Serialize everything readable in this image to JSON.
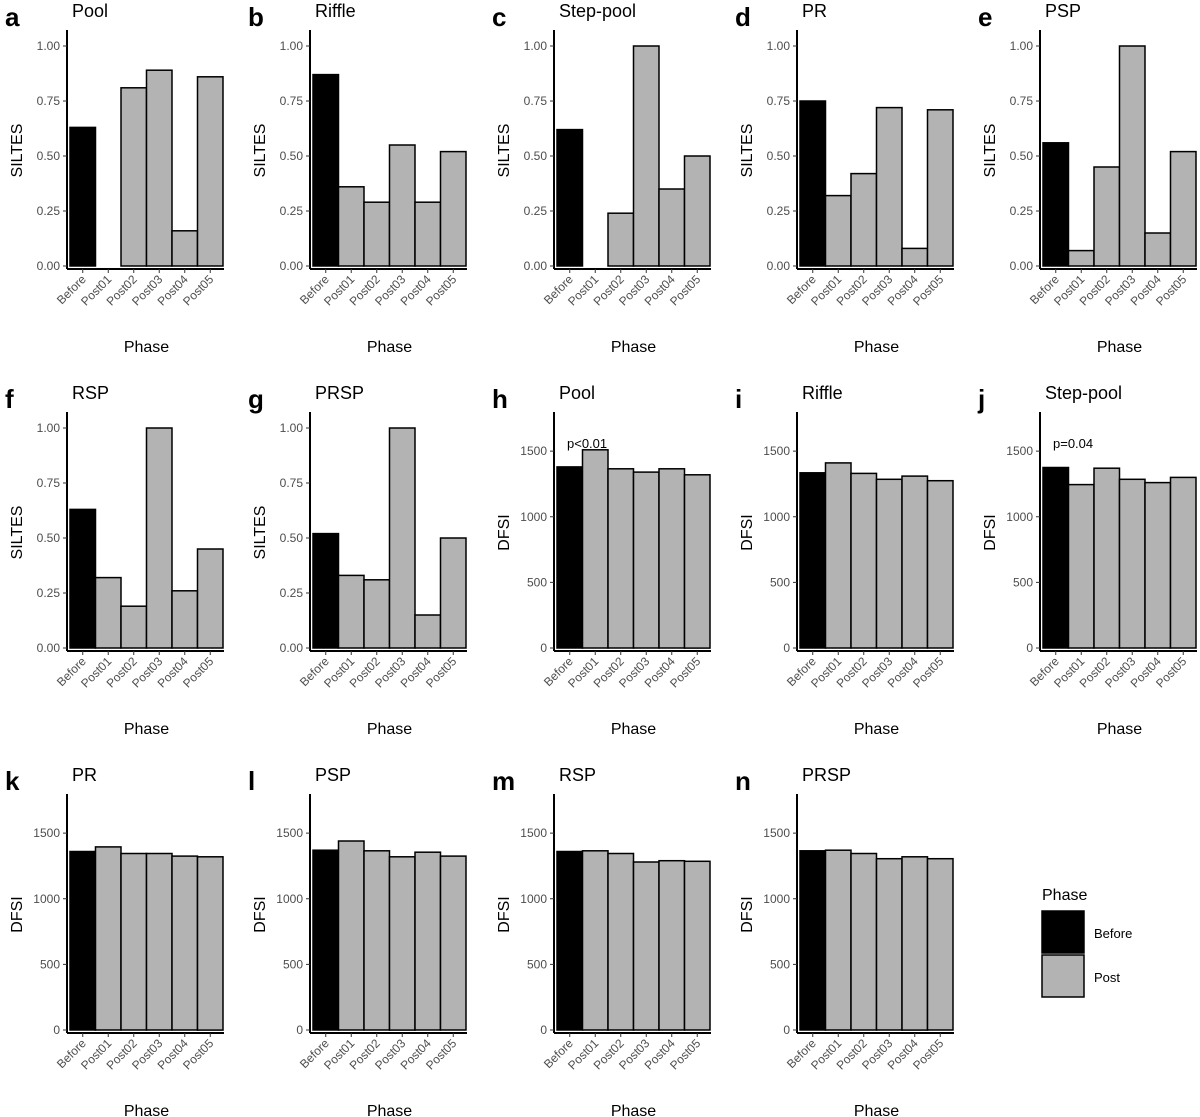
{
  "figure": {
    "legend": {
      "title": "Phase",
      "placement": "right",
      "entries": [
        {
          "label": "Before",
          "color": "#000000"
        },
        {
          "label": "Post",
          "color": "#b3b3b3"
        }
      ]
    }
  },
  "chart_data": [
    {
      "letter": "a",
      "type": "bar",
      "title": "Pool",
      "xlabel": "Phase",
      "ylabel": "SILTES",
      "ylim": [
        0,
        1.05
      ],
      "yticks": [
        0,
        0.25,
        0.5,
        0.75,
        1
      ],
      "ytick_labels": [
        "0.00",
        "0.25",
        "0.50",
        "0.75",
        "1.00"
      ],
      "categories": [
        "Before",
        "Post01",
        "Post02",
        "Post03",
        "Post04",
        "Post05"
      ],
      "groups": [
        "Before",
        "Post",
        "Post",
        "Post",
        "Post",
        "Post"
      ],
      "values": [
        0.63,
        0.0,
        0.81,
        0.89,
        0.16,
        0.86
      ],
      "annotation": ""
    },
    {
      "letter": "b",
      "type": "bar",
      "title": "Riffle",
      "xlabel": "Phase",
      "ylabel": "SILTES",
      "ylim": [
        0,
        1.05
      ],
      "yticks": [
        0,
        0.25,
        0.5,
        0.75,
        1
      ],
      "ytick_labels": [
        "0.00",
        "0.25",
        "0.50",
        "0.75",
        "1.00"
      ],
      "categories": [
        "Before",
        "Post01",
        "Post02",
        "Post03",
        "Post04",
        "Post05"
      ],
      "groups": [
        "Before",
        "Post",
        "Post",
        "Post",
        "Post",
        "Post"
      ],
      "values": [
        0.87,
        0.36,
        0.29,
        0.55,
        0.29,
        0.52
      ],
      "annotation": ""
    },
    {
      "letter": "c",
      "type": "bar",
      "title": "Step-pool",
      "xlabel": "Phase",
      "ylabel": "SILTES",
      "ylim": [
        0,
        1.05
      ],
      "yticks": [
        0,
        0.25,
        0.5,
        0.75,
        1
      ],
      "ytick_labels": [
        "0.00",
        "0.25",
        "0.50",
        "0.75",
        "1.00"
      ],
      "categories": [
        "Before",
        "Post01",
        "Post02",
        "Post03",
        "Post04",
        "Post05"
      ],
      "groups": [
        "Before",
        "Post",
        "Post",
        "Post",
        "Post",
        "Post"
      ],
      "values": [
        0.62,
        0.0,
        0.24,
        1.0,
        0.35,
        0.5
      ],
      "annotation": ""
    },
    {
      "letter": "d",
      "type": "bar",
      "title": "PR",
      "xlabel": "Phase",
      "ylabel": "SILTES",
      "ylim": [
        0,
        1.05
      ],
      "yticks": [
        0,
        0.25,
        0.5,
        0.75,
        1
      ],
      "ytick_labels": [
        "0.00",
        "0.25",
        "0.50",
        "0.75",
        "1.00"
      ],
      "categories": [
        "Before",
        "Post01",
        "Post02",
        "Post03",
        "Post04",
        "Post05"
      ],
      "groups": [
        "Before",
        "Post",
        "Post",
        "Post",
        "Post",
        "Post"
      ],
      "values": [
        0.75,
        0.32,
        0.42,
        0.72,
        0.08,
        0.71
      ],
      "annotation": ""
    },
    {
      "letter": "e",
      "type": "bar",
      "title": "PSP",
      "xlabel": "Phase",
      "ylabel": "SILTES",
      "ylim": [
        0,
        1.05
      ],
      "yticks": [
        0,
        0.25,
        0.5,
        0.75,
        1
      ],
      "ytick_labels": [
        "0.00",
        "0.25",
        "0.50",
        "0.75",
        "1.00"
      ],
      "categories": [
        "Before",
        "Post01",
        "Post02",
        "Post03",
        "Post04",
        "Post05"
      ],
      "groups": [
        "Before",
        "Post",
        "Post",
        "Post",
        "Post",
        "Post"
      ],
      "values": [
        0.56,
        0.07,
        0.45,
        1.0,
        0.15,
        0.52
      ],
      "annotation": ""
    },
    {
      "letter": "f",
      "type": "bar",
      "title": "RSP",
      "xlabel": "Phase",
      "ylabel": "SILTES",
      "ylim": [
        0,
        1.05
      ],
      "yticks": [
        0,
        0.25,
        0.5,
        0.75,
        1
      ],
      "ytick_labels": [
        "0.00",
        "0.25",
        "0.50",
        "0.75",
        "1.00"
      ],
      "categories": [
        "Before",
        "Post01",
        "Post02",
        "Post03",
        "Post04",
        "Post05"
      ],
      "groups": [
        "Before",
        "Post",
        "Post",
        "Post",
        "Post",
        "Post"
      ],
      "values": [
        0.63,
        0.32,
        0.19,
        1.0,
        0.26,
        0.45
      ],
      "annotation": ""
    },
    {
      "letter": "g",
      "type": "bar",
      "title": "PRSP",
      "xlabel": "Phase",
      "ylabel": "SILTES",
      "ylim": [
        0,
        1.05
      ],
      "yticks": [
        0,
        0.25,
        0.5,
        0.75,
        1
      ],
      "ytick_labels": [
        "0.00",
        "0.25",
        "0.50",
        "0.75",
        "1.00"
      ],
      "categories": [
        "Before",
        "Post01",
        "Post02",
        "Post03",
        "Post04",
        "Post05"
      ],
      "groups": [
        "Before",
        "Post",
        "Post",
        "Post",
        "Post",
        "Post"
      ],
      "values": [
        0.52,
        0.33,
        0.31,
        1.0,
        0.15,
        0.5
      ],
      "annotation": ""
    },
    {
      "letter": "h",
      "type": "bar",
      "title": "Pool",
      "xlabel": "Phase",
      "ylabel": "DFSI",
      "ylim": [
        0,
        1760
      ],
      "yticks": [
        0,
        500,
        1000,
        1500
      ],
      "ytick_labels": [
        "0",
        "500",
        "1000",
        "1500"
      ],
      "categories": [
        "Before",
        "Post01",
        "Post02",
        "Post03",
        "Post04",
        "Post05"
      ],
      "groups": [
        "Before",
        "Post",
        "Post",
        "Post",
        "Post",
        "Post"
      ],
      "values": [
        1380,
        1510,
        1365,
        1340,
        1365,
        1320
      ],
      "annotation": "p<0.01"
    },
    {
      "letter": "i",
      "type": "bar",
      "title": "Riffle",
      "xlabel": "Phase",
      "ylabel": "DFSI",
      "ylim": [
        0,
        1760
      ],
      "yticks": [
        0,
        500,
        1000,
        1500
      ],
      "ytick_labels": [
        "0",
        "500",
        "1000",
        "1500"
      ],
      "categories": [
        "Before",
        "Post01",
        "Post02",
        "Post03",
        "Post04",
        "Post05"
      ],
      "groups": [
        "Before",
        "Post",
        "Post",
        "Post",
        "Post",
        "Post"
      ],
      "values": [
        1335,
        1410,
        1330,
        1285,
        1310,
        1275
      ],
      "annotation": ""
    },
    {
      "letter": "j",
      "type": "bar",
      "title": "Step-pool",
      "xlabel": "Phase",
      "ylabel": "DFSI",
      "ylim": [
        0,
        1760
      ],
      "yticks": [
        0,
        500,
        1000,
        1500
      ],
      "ytick_labels": [
        "0",
        "500",
        "1000",
        "1500"
      ],
      "categories": [
        "Before",
        "Post01",
        "Post02",
        "Post03",
        "Post04",
        "Post05"
      ],
      "groups": [
        "Before",
        "Post",
        "Post",
        "Post",
        "Post",
        "Post"
      ],
      "values": [
        1375,
        1245,
        1370,
        1285,
        1260,
        1300
      ],
      "annotation": "p=0.04"
    },
    {
      "letter": "k",
      "type": "bar",
      "title": "PR",
      "xlabel": "Phase",
      "ylabel": "DFSI",
      "ylim": [
        0,
        1760
      ],
      "yticks": [
        0,
        500,
        1000,
        1500
      ],
      "ytick_labels": [
        "0",
        "500",
        "1000",
        "1500"
      ],
      "categories": [
        "Before",
        "Post01",
        "Post02",
        "Post03",
        "Post04",
        "Post05"
      ],
      "groups": [
        "Before",
        "Post",
        "Post",
        "Post",
        "Post",
        "Post"
      ],
      "values": [
        1360,
        1395,
        1345,
        1345,
        1325,
        1320
      ],
      "annotation": ""
    },
    {
      "letter": "l",
      "type": "bar",
      "title": "PSP",
      "xlabel": "Phase",
      "ylabel": "DFSI",
      "ylim": [
        0,
        1760
      ],
      "yticks": [
        0,
        500,
        1000,
        1500
      ],
      "ytick_labels": [
        "0",
        "500",
        "1000",
        "1500"
      ],
      "categories": [
        "Before",
        "Post01",
        "Post02",
        "Post03",
        "Post04",
        "Post05"
      ],
      "groups": [
        "Before",
        "Post",
        "Post",
        "Post",
        "Post",
        "Post"
      ],
      "values": [
        1370,
        1440,
        1365,
        1320,
        1355,
        1325
      ],
      "annotation": ""
    },
    {
      "letter": "m",
      "type": "bar",
      "title": "RSP",
      "xlabel": "Phase",
      "ylabel": "DFSI",
      "ylim": [
        0,
        1760
      ],
      "yticks": [
        0,
        500,
        1000,
        1500
      ],
      "ytick_labels": [
        "0",
        "500",
        "1000",
        "1500"
      ],
      "categories": [
        "Before",
        "Post01",
        "Post02",
        "Post03",
        "Post04",
        "Post05"
      ],
      "groups": [
        "Before",
        "Post",
        "Post",
        "Post",
        "Post",
        "Post"
      ],
      "values": [
        1360,
        1365,
        1345,
        1280,
        1290,
        1285
      ],
      "annotation": ""
    },
    {
      "letter": "n",
      "type": "bar",
      "title": "PRSP",
      "xlabel": "Phase",
      "ylabel": "DFSI",
      "ylim": [
        0,
        1760
      ],
      "yticks": [
        0,
        500,
        1000,
        1500
      ],
      "ytick_labels": [
        "0",
        "500",
        "1000",
        "1500"
      ],
      "categories": [
        "Before",
        "Post01",
        "Post02",
        "Post03",
        "Post04",
        "Post05"
      ],
      "groups": [
        "Before",
        "Post",
        "Post",
        "Post",
        "Post",
        "Post"
      ],
      "values": [
        1365,
        1370,
        1345,
        1305,
        1320,
        1305
      ],
      "annotation": ""
    }
  ]
}
